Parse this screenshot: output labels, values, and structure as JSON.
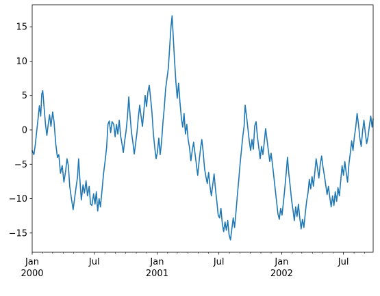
{
  "chart_data": {
    "type": "line",
    "title": "",
    "xlabel": "",
    "ylabel": "",
    "x_range": [
      "2000-01-01",
      "2002-09-26"
    ],
    "ylim": [
      -17.8,
      18.2
    ],
    "grid": false,
    "legend": "none",
    "line_color": "#1f77b4",
    "yticks": [
      {
        "value": -15,
        "label": "−15"
      },
      {
        "value": -10,
        "label": "−10"
      },
      {
        "value": -5,
        "label": "−5"
      },
      {
        "value": 0,
        "label": "0"
      },
      {
        "value": 5,
        "label": "5"
      },
      {
        "value": 10,
        "label": "10"
      },
      {
        "value": 15,
        "label": "15"
      }
    ],
    "xticks_major": [
      {
        "date": "2000-01-01",
        "label": "Jan",
        "sublabel": "2000"
      },
      {
        "date": "2000-07-01",
        "label": "Jul",
        "sublabel": ""
      },
      {
        "date": "2001-01-01",
        "label": "Jan",
        "sublabel": "2001"
      },
      {
        "date": "2001-07-01",
        "label": "Jul",
        "sublabel": ""
      },
      {
        "date": "2002-01-01",
        "label": "Jan",
        "sublabel": "2002"
      },
      {
        "date": "2002-07-01",
        "label": "Jul",
        "sublabel": ""
      }
    ],
    "xticks_minor": [
      "2000-02-01",
      "2000-03-01",
      "2000-04-01",
      "2000-05-01",
      "2000-06-01",
      "2000-08-01",
      "2000-09-01",
      "2000-10-01",
      "2000-11-01",
      "2000-12-01",
      "2001-02-01",
      "2001-03-01",
      "2001-04-01",
      "2001-05-01",
      "2001-06-01",
      "2001-08-01",
      "2001-09-01",
      "2001-10-01",
      "2001-11-01",
      "2001-12-01",
      "2002-02-01",
      "2002-03-01",
      "2002-04-01",
      "2002-05-01",
      "2002-06-01",
      "2002-08-01",
      "2002-09-01"
    ],
    "series": [
      {
        "points": [
          [
            "2000-01-01",
            -3.0
          ],
          [
            "2000-01-06",
            -3.6
          ],
          [
            "2000-01-10",
            -2.2
          ],
          [
            "2000-01-14",
            -0.3
          ],
          [
            "2000-01-18",
            1.5
          ],
          [
            "2000-01-22",
            3.5
          ],
          [
            "2000-01-26",
            2.0
          ],
          [
            "2000-01-29",
            5.2
          ],
          [
            "2000-02-01",
            5.7
          ],
          [
            "2000-02-05",
            3.2
          ],
          [
            "2000-02-09",
            0.8
          ],
          [
            "2000-02-13",
            -0.8
          ],
          [
            "2000-02-17",
            0.8
          ],
          [
            "2000-02-21",
            2.2
          ],
          [
            "2000-02-25",
            0.5
          ],
          [
            "2000-03-01",
            2.6
          ],
          [
            "2000-03-05",
            1.2
          ],
          [
            "2000-03-10",
            -2.0
          ],
          [
            "2000-03-15",
            -4.0
          ],
          [
            "2000-03-19",
            -3.6
          ],
          [
            "2000-03-24",
            -6.3
          ],
          [
            "2000-03-29",
            -5.2
          ],
          [
            "2000-04-03",
            -7.6
          ],
          [
            "2000-04-08",
            -6.0
          ],
          [
            "2000-04-12",
            -4.2
          ],
          [
            "2000-04-16",
            -5.2
          ],
          [
            "2000-04-20",
            -8.2
          ],
          [
            "2000-04-25",
            -10.0
          ],
          [
            "2000-04-30",
            -11.6
          ],
          [
            "2000-05-04",
            -10.1
          ],
          [
            "2000-05-09",
            -8.2
          ],
          [
            "2000-05-13",
            -6.8
          ],
          [
            "2000-05-16",
            -4.2
          ],
          [
            "2000-05-20",
            -7.4
          ],
          [
            "2000-05-24",
            -10.2
          ],
          [
            "2000-05-29",
            -8.0
          ],
          [
            "2000-06-02",
            -9.2
          ],
          [
            "2000-06-07",
            -7.4
          ],
          [
            "2000-06-11",
            -9.6
          ],
          [
            "2000-06-16",
            -8.2
          ],
          [
            "2000-06-20",
            -10.8
          ],
          [
            "2000-06-24",
            -11.0
          ],
          [
            "2000-06-29",
            -9.3
          ],
          [
            "2000-07-03",
            -10.8
          ],
          [
            "2000-07-07",
            -9.0
          ],
          [
            "2000-07-11",
            -11.8
          ],
          [
            "2000-07-15",
            -10.0
          ],
          [
            "2000-07-19",
            -11.2
          ],
          [
            "2000-07-24",
            -8.6
          ],
          [
            "2000-07-28",
            -6.4
          ],
          [
            "2000-08-02",
            -4.4
          ],
          [
            "2000-08-06",
            -2.6
          ],
          [
            "2000-08-10",
            0.8
          ],
          [
            "2000-08-14",
            1.3
          ],
          [
            "2000-08-18",
            -0.4
          ],
          [
            "2000-08-22",
            1.2
          ],
          [
            "2000-08-27",
            0.8
          ],
          [
            "2000-08-31",
            -1.0
          ],
          [
            "2000-09-04",
            0.8
          ],
          [
            "2000-09-08",
            -0.6
          ],
          [
            "2000-09-12",
            1.4
          ],
          [
            "2000-09-16",
            -0.8
          ],
          [
            "2000-09-20",
            -2.0
          ],
          [
            "2000-09-24",
            -3.3
          ],
          [
            "2000-09-28",
            -1.6
          ],
          [
            "2000-10-02",
            -0.2
          ],
          [
            "2000-10-06",
            1.8
          ],
          [
            "2000-10-10",
            4.8
          ],
          [
            "2000-10-14",
            2.0
          ],
          [
            "2000-10-18",
            -0.4
          ],
          [
            "2000-10-22",
            -1.8
          ],
          [
            "2000-10-26",
            -3.5
          ],
          [
            "2000-10-30",
            -2.0
          ],
          [
            "2000-11-03",
            -0.4
          ],
          [
            "2000-11-07",
            1.8
          ],
          [
            "2000-11-11",
            3.6
          ],
          [
            "2000-11-15",
            2.0
          ],
          [
            "2000-11-19",
            0.5
          ],
          [
            "2000-11-23",
            2.6
          ],
          [
            "2000-11-27",
            5.0
          ],
          [
            "2000-12-01",
            3.4
          ],
          [
            "2000-12-05",
            5.5
          ],
          [
            "2000-12-09",
            6.5
          ],
          [
            "2000-12-13",
            4.6
          ],
          [
            "2000-12-17",
            2.5
          ],
          [
            "2000-12-21",
            -0.5
          ],
          [
            "2000-12-25",
            -2.5
          ],
          [
            "2000-12-29",
            -4.2
          ],
          [
            "2001-01-02",
            -3.2
          ],
          [
            "2001-01-06",
            -1.2
          ],
          [
            "2001-01-10",
            -3.6
          ],
          [
            "2001-01-14",
            -1.8
          ],
          [
            "2001-01-18",
            1.0
          ],
          [
            "2001-01-22",
            3.2
          ],
          [
            "2001-01-26",
            6.0
          ],
          [
            "2001-01-30",
            7.5
          ],
          [
            "2001-02-03",
            9.0
          ],
          [
            "2001-02-07",
            12.2
          ],
          [
            "2001-02-11",
            15.2
          ],
          [
            "2001-02-14",
            16.6
          ],
          [
            "2001-02-17",
            13.8
          ],
          [
            "2001-02-21",
            10.2
          ],
          [
            "2001-02-25",
            7.0
          ],
          [
            "2001-03-01",
            4.6
          ],
          [
            "2001-03-05",
            6.8
          ],
          [
            "2001-03-09",
            4.0
          ],
          [
            "2001-03-13",
            1.8
          ],
          [
            "2001-03-17",
            0.4
          ],
          [
            "2001-03-21",
            2.4
          ],
          [
            "2001-03-25",
            -0.6
          ],
          [
            "2001-03-29",
            0.8
          ],
          [
            "2001-04-02",
            -1.4
          ],
          [
            "2001-04-06",
            -2.6
          ],
          [
            "2001-04-10",
            -4.5
          ],
          [
            "2001-04-14",
            -3.0
          ],
          [
            "2001-04-18",
            -1.8
          ],
          [
            "2001-04-22",
            -3.4
          ],
          [
            "2001-04-26",
            -5.0
          ],
          [
            "2001-04-30",
            -6.6
          ],
          [
            "2001-05-04",
            -4.6
          ],
          [
            "2001-05-08",
            -2.8
          ],
          [
            "2001-05-12",
            -1.4
          ],
          [
            "2001-05-16",
            -3.2
          ],
          [
            "2001-05-20",
            -5.6
          ],
          [
            "2001-05-24",
            -6.8
          ],
          [
            "2001-05-28",
            -7.8
          ],
          [
            "2001-06-01",
            -6.2
          ],
          [
            "2001-06-05",
            -8.2
          ],
          [
            "2001-06-09",
            -9.6
          ],
          [
            "2001-06-13",
            -8.0
          ],
          [
            "2001-06-17",
            -6.4
          ],
          [
            "2001-06-21",
            -8.6
          ],
          [
            "2001-06-25",
            -10.4
          ],
          [
            "2001-06-29",
            -12.4
          ],
          [
            "2001-07-03",
            -12.8
          ],
          [
            "2001-07-07",
            -11.4
          ],
          [
            "2001-07-11",
            -13.6
          ],
          [
            "2001-07-15",
            -14.8
          ],
          [
            "2001-07-19",
            -13.4
          ],
          [
            "2001-07-23",
            -14.6
          ],
          [
            "2001-07-27",
            -13.2
          ],
          [
            "2001-07-31",
            -15.3
          ],
          [
            "2001-08-04",
            -16.0
          ],
          [
            "2001-08-08",
            -14.4
          ],
          [
            "2001-08-12",
            -12.8
          ],
          [
            "2001-08-16",
            -14.2
          ],
          [
            "2001-08-20",
            -12.0
          ],
          [
            "2001-08-24",
            -9.6
          ],
          [
            "2001-08-28",
            -7.4
          ],
          [
            "2001-09-01",
            -5.0
          ],
          [
            "2001-09-05",
            -3.0
          ],
          [
            "2001-09-09",
            -1.0
          ],
          [
            "2001-09-13",
            0.6
          ],
          [
            "2001-09-16",
            3.6
          ],
          [
            "2001-09-20",
            2.0
          ],
          [
            "2001-09-24",
            0.2
          ],
          [
            "2001-09-28",
            -1.6
          ],
          [
            "2001-10-02",
            -3.0
          ],
          [
            "2001-10-06",
            -1.4
          ],
          [
            "2001-10-10",
            -2.8
          ],
          [
            "2001-10-14",
            0.6
          ],
          [
            "2001-10-18",
            1.2
          ],
          [
            "2001-10-22",
            -1.0
          ],
          [
            "2001-10-26",
            -2.6
          ],
          [
            "2001-10-30",
            -4.2
          ],
          [
            "2001-11-03",
            -2.4
          ],
          [
            "2001-11-07",
            -3.6
          ],
          [
            "2001-11-11",
            -1.8
          ],
          [
            "2001-11-15",
            0.2
          ],
          [
            "2001-11-19",
            -1.4
          ],
          [
            "2001-11-23",
            -3.0
          ],
          [
            "2001-11-27",
            -4.6
          ],
          [
            "2001-12-01",
            -3.4
          ],
          [
            "2001-12-05",
            -5.0
          ],
          [
            "2001-12-09",
            -6.8
          ],
          [
            "2001-12-13",
            -8.6
          ],
          [
            "2001-12-17",
            -10.4
          ],
          [
            "2001-12-21",
            -12.2
          ],
          [
            "2001-12-25",
            -13.0
          ],
          [
            "2001-12-29",
            -11.4
          ],
          [
            "2002-01-02",
            -12.4
          ],
          [
            "2002-01-06",
            -10.6
          ],
          [
            "2002-01-10",
            -8.6
          ],
          [
            "2002-01-14",
            -6.4
          ],
          [
            "2002-01-18",
            -4.0
          ],
          [
            "2002-01-22",
            -6.4
          ],
          [
            "2002-01-26",
            -8.2
          ],
          [
            "2002-01-30",
            -10.2
          ],
          [
            "2002-02-03",
            -11.6
          ],
          [
            "2002-02-07",
            -13.2
          ],
          [
            "2002-02-11",
            -11.2
          ],
          [
            "2002-02-15",
            -12.6
          ],
          [
            "2002-02-19",
            -10.8
          ],
          [
            "2002-02-23",
            -12.8
          ],
          [
            "2002-02-27",
            -14.4
          ],
          [
            "2002-03-03",
            -13.0
          ],
          [
            "2002-03-07",
            -14.2
          ],
          [
            "2002-03-11",
            -12.2
          ],
          [
            "2002-03-15",
            -10.4
          ],
          [
            "2002-03-19",
            -9.2
          ],
          [
            "2002-03-23",
            -7.2
          ],
          [
            "2002-03-27",
            -8.6
          ],
          [
            "2002-03-31",
            -6.8
          ],
          [
            "2002-04-04",
            -8.2
          ],
          [
            "2002-04-08",
            -6.2
          ],
          [
            "2002-04-12",
            -4.2
          ],
          [
            "2002-04-16",
            -5.6
          ],
          [
            "2002-04-20",
            -7.0
          ],
          [
            "2002-04-24",
            -5.0
          ],
          [
            "2002-04-28",
            -3.8
          ],
          [
            "2002-05-02",
            -5.4
          ],
          [
            "2002-05-06",
            -6.6
          ],
          [
            "2002-05-10",
            -8.0
          ],
          [
            "2002-05-14",
            -9.4
          ],
          [
            "2002-05-18",
            -8.2
          ],
          [
            "2002-05-22",
            -9.8
          ],
          [
            "2002-05-26",
            -11.2
          ],
          [
            "2002-05-30",
            -9.6
          ],
          [
            "2002-06-03",
            -11.0
          ],
          [
            "2002-06-07",
            -9.0
          ],
          [
            "2002-06-11",
            -10.4
          ],
          [
            "2002-06-15",
            -8.4
          ],
          [
            "2002-06-19",
            -9.6
          ],
          [
            "2002-06-23",
            -7.4
          ],
          [
            "2002-06-27",
            -5.2
          ],
          [
            "2002-07-01",
            -6.6
          ],
          [
            "2002-07-05",
            -4.6
          ],
          [
            "2002-07-09",
            -6.2
          ],
          [
            "2002-07-13",
            -7.6
          ],
          [
            "2002-07-17",
            -5.0
          ],
          [
            "2002-07-21",
            -3.4
          ],
          [
            "2002-07-25",
            -1.6
          ],
          [
            "2002-07-29",
            -3.0
          ],
          [
            "2002-08-02",
            -1.0
          ],
          [
            "2002-08-06",
            0.4
          ],
          [
            "2002-08-10",
            2.4
          ],
          [
            "2002-08-14",
            0.8
          ],
          [
            "2002-08-18",
            -1.2
          ],
          [
            "2002-08-22",
            -2.4
          ],
          [
            "2002-08-26",
            -0.2
          ],
          [
            "2002-08-30",
            1.4
          ],
          [
            "2002-09-03",
            -0.4
          ],
          [
            "2002-09-07",
            -2.0
          ],
          [
            "2002-09-11",
            -1.0
          ],
          [
            "2002-09-15",
            0.6
          ],
          [
            "2002-09-19",
            2.0
          ],
          [
            "2002-09-23",
            0.4
          ],
          [
            "2002-09-26",
            1.6
          ]
        ]
      }
    ]
  }
}
